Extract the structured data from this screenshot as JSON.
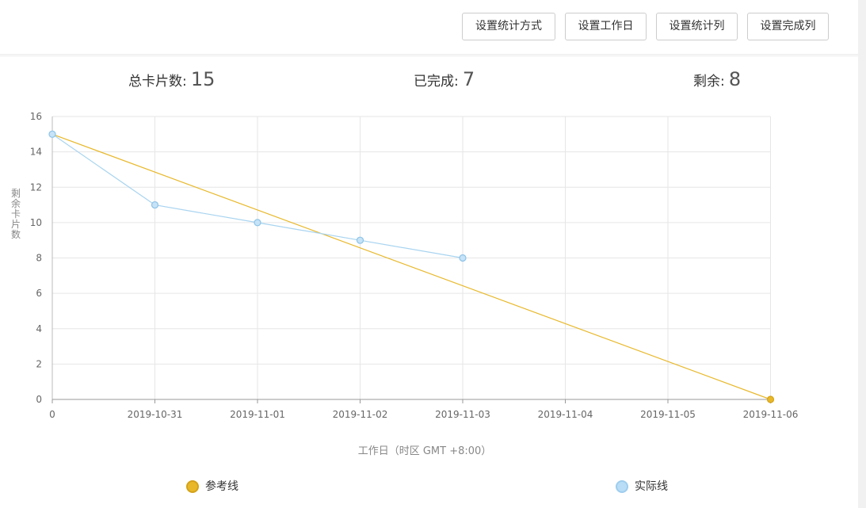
{
  "toolbar": {
    "buttons": [
      "设置统计方式",
      "设置工作日",
      "设置统计列",
      "设置完成列"
    ]
  },
  "stats": {
    "total_label": "总卡片数:",
    "total_value": "15",
    "done_label": "已完成:",
    "done_value": "7",
    "remaining_label": "剩余:",
    "remaining_value": "8"
  },
  "colors": {
    "reference": "#E8B82A",
    "actual": "#A8D4F0"
  },
  "chart_data": {
    "type": "line",
    "ylabel": "剩余卡片数",
    "xlabel": "工作日（时区 GMT +8:00）",
    "categories": [
      "0",
      "2019-10-31",
      "2019-11-01",
      "2019-11-02",
      "2019-11-03",
      "2019-11-04",
      "2019-11-05",
      "2019-11-06"
    ],
    "ylim": [
      0,
      16
    ],
    "yticks": [
      0,
      2,
      4,
      6,
      8,
      10,
      12,
      14,
      16
    ],
    "grid": true,
    "series": [
      {
        "name": "参考线",
        "values": [
          15,
          null,
          null,
          null,
          null,
          null,
          null,
          0
        ],
        "markers_at": [
          7
        ]
      },
      {
        "name": "实际线",
        "values": [
          15,
          11,
          10,
          9,
          8,
          null,
          null,
          null
        ],
        "markers_at": [
          0,
          1,
          2,
          3,
          4
        ]
      }
    ],
    "legend_position": "bottom"
  }
}
